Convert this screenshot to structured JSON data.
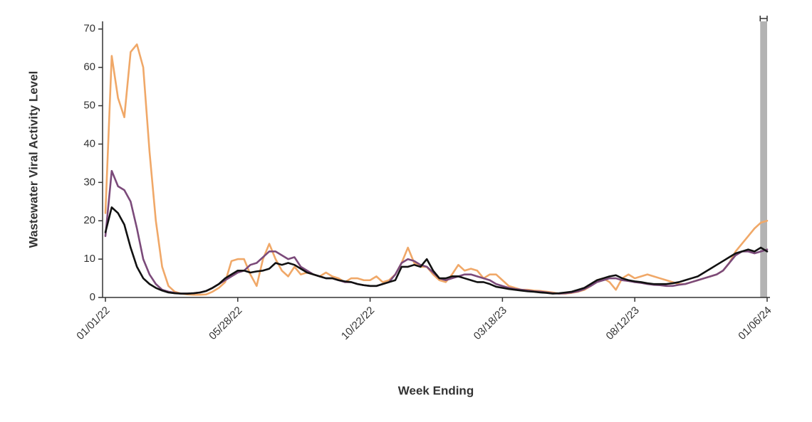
{
  "chart_data": {
    "type": "line",
    "y_label": "Wastewater Viral Activity Level",
    "x_label": "Week Ending",
    "categories": [
      "01/01/22",
      null,
      null,
      null,
      null,
      null,
      null,
      null,
      null,
      null,
      null,
      null,
      null,
      null,
      null,
      null,
      null,
      null,
      null,
      null,
      null,
      "05/28/22",
      null,
      null,
      null,
      null,
      null,
      null,
      null,
      null,
      null,
      null,
      null,
      null,
      null,
      null,
      null,
      null,
      null,
      null,
      null,
      null,
      "10/22/22",
      null,
      null,
      null,
      null,
      null,
      null,
      null,
      null,
      null,
      null,
      null,
      null,
      null,
      null,
      null,
      null,
      null,
      null,
      null,
      null,
      "03/18/23",
      null,
      null,
      null,
      null,
      null,
      null,
      null,
      null,
      null,
      null,
      null,
      null,
      null,
      null,
      null,
      null,
      null,
      null,
      null,
      null,
      "08/12/23",
      null,
      null,
      null,
      null,
      null,
      null,
      null,
      null,
      null,
      null,
      null,
      null,
      null,
      null,
      null,
      null,
      null,
      null,
      null,
      null,
      "01/06/24"
    ],
    "series": [
      {
        "color": "#f0a868",
        "values": [
          22,
          63,
          52,
          47,
          64,
          66,
          60,
          38,
          20,
          8,
          3,
          1.5,
          1,
          0.8,
          0.7,
          0.7,
          0.8,
          1.5,
          2.5,
          4,
          9.5,
          10,
          10,
          6,
          3,
          10,
          14,
          10,
          7,
          5.5,
          8,
          6,
          6.5,
          6,
          5.5,
          6.5,
          5.5,
          5,
          4,
          5,
          5,
          4.5,
          4.5,
          5.5,
          4,
          4.5,
          6,
          9,
          13,
          9,
          8,
          8,
          6,
          4.5,
          4,
          6,
          8.5,
          7,
          7.5,
          7,
          5,
          6,
          6,
          4.5,
          3,
          2.5,
          2,
          2,
          1.8,
          1.7,
          1.5,
          1.3,
          1,
          1,
          1.2,
          1.5,
          2,
          3,
          4.5,
          5,
          4,
          2,
          5,
          6,
          5,
          5.5,
          6,
          5.5,
          5,
          4.5,
          4,
          3.5,
          3.5,
          4,
          4.5,
          5,
          5.5,
          6,
          7,
          9,
          12,
          14,
          16,
          18,
          19.5,
          20
        ]
      },
      {
        "color": "#7b4a7a",
        "values": [
          16,
          33,
          29,
          28,
          25,
          18,
          10,
          6,
          3.5,
          2,
          1.5,
          1.2,
          1,
          1,
          1.1,
          1.3,
          1.7,
          2.5,
          3.5,
          4.5,
          5.5,
          6.5,
          7,
          8.5,
          9,
          10.5,
          12,
          12,
          11,
          10,
          10.5,
          8,
          7,
          6,
          5.5,
          5,
          5,
          4.5,
          4,
          4,
          3.5,
          3.2,
          3,
          3,
          3.5,
          4,
          6,
          9,
          10,
          9.5,
          8.5,
          8,
          6.5,
          5,
          4.5,
          5,
          5.5,
          6,
          6,
          5.5,
          5,
          4.5,
          3.5,
          3,
          2.5,
          2.2,
          2,
          1.8,
          1.6,
          1.5,
          1.3,
          1.1,
          1,
          1.1,
          1.3,
          1.6,
          2.2,
          3,
          4,
          4.5,
          5,
          5,
          4.5,
          4.3,
          4,
          3.8,
          3.5,
          3.3,
          3.2,
          3,
          3,
          3.3,
          3.5,
          4,
          4.5,
          5,
          5.5,
          6,
          7,
          9,
          11,
          12,
          12,
          11.5,
          12,
          12.5
        ]
      },
      {
        "color": "#111111",
        "values": [
          17,
          23.5,
          22,
          19,
          13,
          8,
          5,
          3.5,
          2.5,
          1.8,
          1.3,
          1.1,
          1,
          1,
          1.1,
          1.3,
          1.7,
          2.5,
          3.5,
          5,
          6,
          7,
          7,
          6.5,
          6.8,
          7,
          7.5,
          9,
          8.5,
          9,
          8.5,
          7.5,
          6.5,
          6,
          5.5,
          5,
          5,
          4.5,
          4.2,
          4,
          3.5,
          3.2,
          3,
          3,
          3.5,
          4,
          4.5,
          8,
          8,
          8.5,
          8,
          10,
          7,
          5,
          5,
          5.5,
          5.5,
          5,
          4.5,
          4,
          4,
          3.5,
          2.8,
          2.5,
          2.2,
          2,
          1.8,
          1.6,
          1.5,
          1.3,
          1.2,
          1,
          1.1,
          1.3,
          1.5,
          2,
          2.5,
          3.5,
          4.5,
          5,
          5.5,
          5.8,
          5,
          4.5,
          4.2,
          4,
          3.7,
          3.5,
          3.5,
          3.5,
          3.7,
          4,
          4.5,
          5,
          5.5,
          6.5,
          7.5,
          8.5,
          9.5,
          10.5,
          11.5,
          12,
          12.5,
          12,
          13,
          12
        ]
      }
    ],
    "ylim": [
      0,
      72
    ],
    "yticks": [
      0,
      10,
      20,
      30,
      40,
      50,
      60,
      70
    ]
  }
}
